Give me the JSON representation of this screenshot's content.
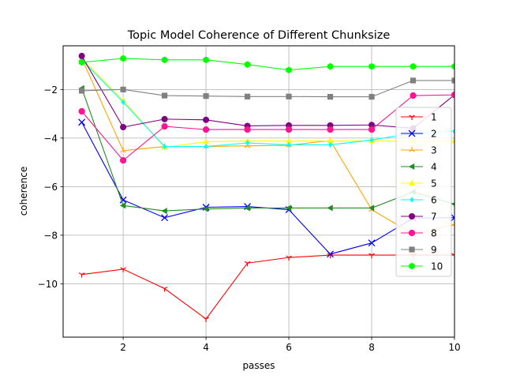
{
  "chart_data": {
    "type": "line",
    "title": "Topic Model Coherence of Different Chunksize",
    "xlabel": "passes",
    "ylabel": "coherence",
    "x": [
      1,
      2,
      3,
      4,
      5,
      6,
      7,
      8,
      9,
      10
    ],
    "xlim": [
      0.55,
      10
    ],
    "ylim": [
      -12.2,
      -0.2
    ],
    "xticks": [
      2,
      4,
      6,
      8,
      10
    ],
    "yticks": [
      -10,
      -8,
      -6,
      -4,
      -2
    ],
    "grid": true,
    "legend_position": "right",
    "series": [
      {
        "name": "1",
        "color": "#ff0000",
        "marker": "tri_down",
        "values": [
          -9.62,
          -9.4,
          -10.2,
          -11.45,
          -9.15,
          -8.92,
          -8.82,
          -8.82,
          -8.82,
          -8.82
        ]
      },
      {
        "name": "2",
        "color": "#0000ff",
        "marker": "x",
        "values": [
          -3.35,
          -6.55,
          -7.28,
          -6.85,
          -6.82,
          -6.95,
          -8.78,
          -8.32,
          -7.3,
          -7.28
        ]
      },
      {
        "name": "3",
        "color": "#ffa500",
        "marker": "tri_up",
        "values": [
          -0.72,
          -4.52,
          -4.35,
          -4.35,
          -4.32,
          -4.3,
          -4.1,
          -6.95,
          -7.95,
          -7.55
        ]
      },
      {
        "name": "4",
        "color": "#228b22",
        "marker": "tri_left",
        "values": [
          -1.95,
          -6.78,
          -7.0,
          -6.92,
          -6.88,
          -6.88,
          -6.88,
          -6.88,
          -6.22,
          -6.72
        ]
      },
      {
        "name": "5",
        "color": "#ffff00",
        "marker": "triangle",
        "values": [
          -0.72,
          -2.45,
          -4.38,
          -4.15,
          -4.12,
          -4.12,
          -4.12,
          -4.12,
          -4.12,
          -4.12
        ]
      },
      {
        "name": "6",
        "color": "#00ffff",
        "marker": "diamond",
        "values": [
          -0.78,
          -2.52,
          -4.35,
          -4.35,
          -4.2,
          -4.28,
          -4.28,
          -4.08,
          -3.8,
          -3.72
        ]
      },
      {
        "name": "7",
        "color": "#800080",
        "marker": "circle",
        "values": [
          -0.62,
          -3.55,
          -3.22,
          -3.25,
          -3.5,
          -3.48,
          -3.48,
          -3.46,
          -3.6,
          -2.22
        ]
      },
      {
        "name": "8",
        "color": "#ff1493",
        "marker": "octagon",
        "values": [
          -2.9,
          -4.92,
          -3.52,
          -3.65,
          -3.65,
          -3.65,
          -3.65,
          -3.65,
          -2.25,
          -2.22
        ]
      },
      {
        "name": "9",
        "color": "#808080",
        "marker": "square",
        "values": [
          -2.05,
          -2.0,
          -2.25,
          -2.27,
          -2.29,
          -2.29,
          -2.3,
          -2.3,
          -1.63,
          -1.63
        ]
      },
      {
        "name": "10",
        "color": "#00ff00",
        "marker": "hexagon",
        "values": [
          -0.88,
          -0.72,
          -0.78,
          -0.78,
          -0.97,
          -1.2,
          -1.05,
          -1.05,
          -1.05,
          -1.05
        ]
      }
    ]
  }
}
